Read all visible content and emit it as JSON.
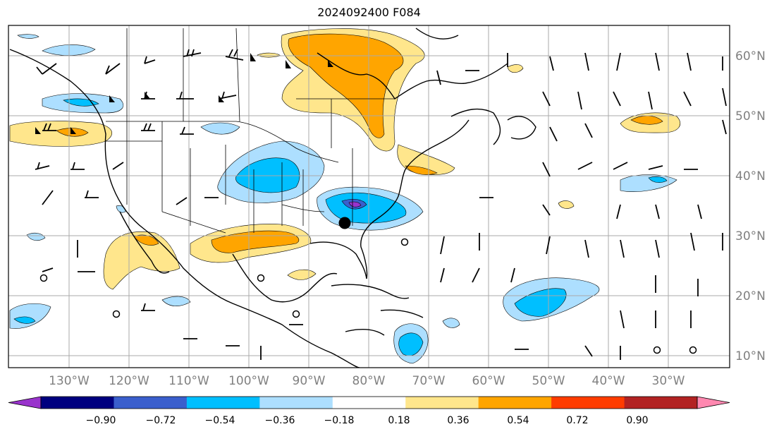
{
  "title": "2024092400 F084",
  "map": {
    "lat_labels": [
      "60°N",
      "50°N",
      "40°N",
      "30°N",
      "20°N",
      "10°N"
    ],
    "lon_labels": [
      "130°W",
      "120°W",
      "110°W",
      "100°W",
      "90°W",
      "80°W",
      "70°W",
      "60°W",
      "50°W",
      "40°W",
      "30°W"
    ],
    "storm_marker": {
      "lon": -84,
      "lat": 32
    }
  },
  "colorbar": {
    "labels": [
      "−0.90",
      "−0.72",
      "−0.54",
      "−0.36",
      "−0.18",
      "0.18",
      "0.36",
      "0.54",
      "0.72",
      "0.90"
    ],
    "colors": [
      "#9933cc",
      "#00007f",
      "#3a5fcd",
      "#00bfff",
      "#addfff",
      "#ffffff",
      "#ffe68c",
      "#ffa500",
      "#ff3c00",
      "#b22222",
      "#ff88b0"
    ]
  }
}
